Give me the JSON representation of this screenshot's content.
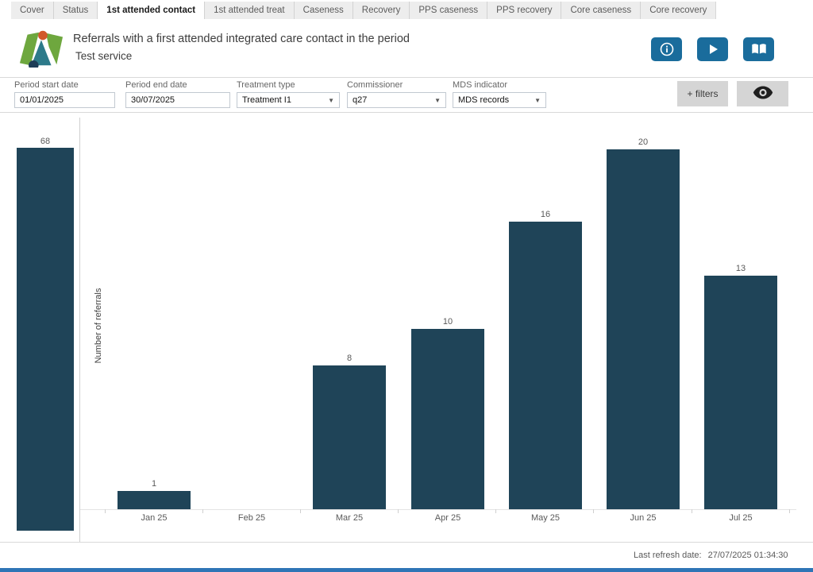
{
  "tabs": {
    "items": [
      {
        "label": "Cover",
        "active": false
      },
      {
        "label": "Status",
        "active": false
      },
      {
        "label": "1st attended contact",
        "active": true
      },
      {
        "label": "1st attended treat",
        "active": false
      },
      {
        "label": "Caseness",
        "active": false
      },
      {
        "label": "Recovery",
        "active": false
      },
      {
        "label": "PPS caseness",
        "active": false
      },
      {
        "label": "PPS recovery",
        "active": false
      },
      {
        "label": "Core caseness",
        "active": false
      },
      {
        "label": "Core recovery",
        "active": false
      }
    ]
  },
  "header": {
    "title": "Referrals with a first attended integrated care contact in the period",
    "subtitle": "Test service",
    "buttons": [
      {
        "icon": "info-icon"
      },
      {
        "icon": "play-icon"
      },
      {
        "icon": "book-icon"
      }
    ],
    "button_color": "#1a6c9c"
  },
  "filters": {
    "fields": [
      {
        "label": "Period start date",
        "value": "01/01/2025",
        "type": "input"
      },
      {
        "label": "Period end date",
        "value": "30/07/2025",
        "type": "input"
      },
      {
        "label": "Treatment type",
        "value": "Treatment I1",
        "type": "dropdown"
      },
      {
        "label": "Commissioner",
        "value": "q27",
        "type": "dropdown"
      },
      {
        "label": "MDS indicator",
        "value": "MDS records",
        "type": "dropdown"
      }
    ],
    "add_filters_label": "+ filters",
    "eye_button": "eye-icon"
  },
  "chart_data": {
    "type": "bar",
    "title": "",
    "ylabel": "Number of referrals",
    "xlabel": "",
    "categories": [
      "Jan 25",
      "Feb 25",
      "Mar 25",
      "Apr 25",
      "May 25",
      "Jun 25",
      "Jul 25"
    ],
    "values": [
      1,
      0,
      8,
      10,
      16,
      20,
      13
    ],
    "left_bar": {
      "label": "68",
      "value": 68,
      "note": "unlabeled full-height bar left of the y-axis line"
    },
    "data_labels": true,
    "bar_color": "#1f4458",
    "y_axis_ticks_visible": false,
    "ylim": [
      0,
      22
    ],
    "grid": false,
    "legend": "none"
  },
  "footer": {
    "refresh_label": "Last refresh date:",
    "refresh_value": "27/07/2025 01:34:30"
  }
}
